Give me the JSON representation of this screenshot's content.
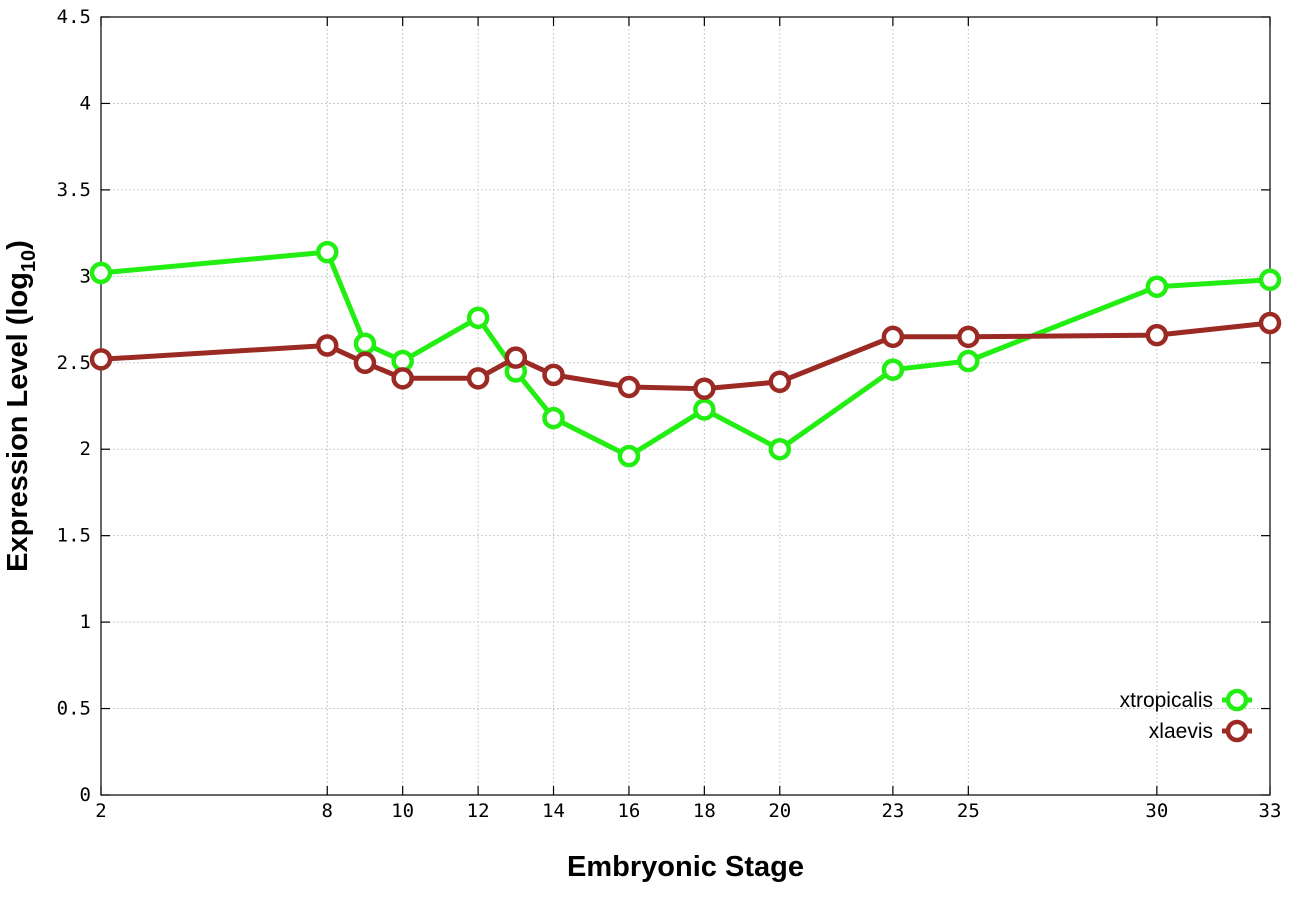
{
  "chart_data": {
    "type": "line",
    "xlabel": "Embryonic Stage",
    "ylabel": "Expression Level (log",
    "ylabel_subscript": "10",
    "ylabel_close": ")",
    "xlim": [
      2,
      33
    ],
    "ylim": [
      0,
      4.5
    ],
    "x_ticks": [
      2,
      8,
      10,
      12,
      14,
      16,
      18,
      20,
      23,
      25,
      30,
      33
    ],
    "y_ticks": [
      0,
      0.5,
      1,
      1.5,
      2,
      2.5,
      3,
      3.5,
      4,
      4.5
    ],
    "y_tick_labels": [
      "0",
      "0.5",
      "1",
      "1.5",
      "2",
      "2.5",
      "3",
      "3.5",
      "4",
      "4.5"
    ],
    "grid": true,
    "legend_position": "bottom-right",
    "series": [
      {
        "name": "xtropicalis",
        "color": "#22ee11",
        "x": [
          2,
          8,
          9,
          10,
          12,
          13,
          14,
          16,
          18,
          20,
          23,
          25,
          30,
          33
        ],
        "y": [
          3.02,
          3.14,
          2.61,
          2.51,
          2.76,
          2.45,
          2.18,
          1.96,
          2.23,
          2.0,
          2.46,
          2.51,
          2.94,
          2.98
        ]
      },
      {
        "name": "xlaevis",
        "color": "#9b2a24",
        "x": [
          2,
          8,
          9,
          10,
          12,
          13,
          14,
          16,
          18,
          20,
          23,
          25,
          30,
          33
        ],
        "y": [
          2.52,
          2.6,
          2.5,
          2.41,
          2.41,
          2.53,
          2.43,
          2.36,
          2.35,
          2.39,
          2.65,
          2.65,
          2.66,
          2.73
        ]
      }
    ]
  }
}
